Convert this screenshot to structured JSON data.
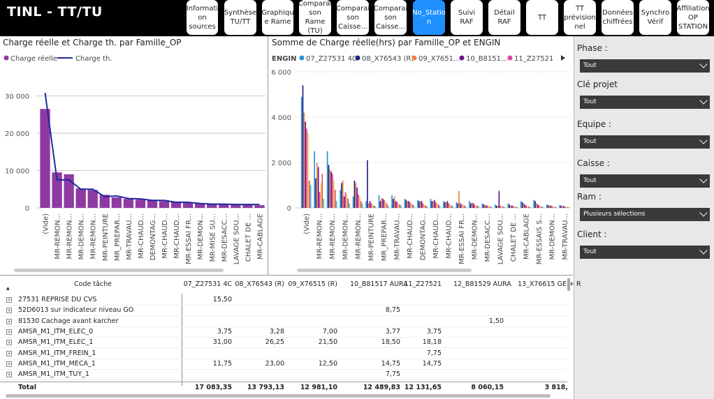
{
  "header": {
    "title": "TINL - TT/TU"
  },
  "nav": [
    {
      "label": "Informati on sources"
    },
    {
      "label": "Synthèse TU/TT"
    },
    {
      "label": "Graphiqu e Rame"
    },
    {
      "label": "Comparai son Rame (TU)"
    },
    {
      "label": "Comparai son Caisse..."
    },
    {
      "label": "Comparai son Caisse..."
    },
    {
      "label": "No_Statio n",
      "active": true
    },
    {
      "label": "Suivi RAF"
    },
    {
      "label": "Détail RAF"
    },
    {
      "label": "TT"
    },
    {
      "label": "TT prévision nel"
    },
    {
      "label": "Données chiffrées"
    },
    {
      "label": "Synchro Vérif"
    },
    {
      "label": "Affiliation OP STATION"
    }
  ],
  "chart_data": [
    {
      "type": "bar",
      "title": "Charge réelle et Charge th. par Famille_OP",
      "legend": [
        "Charge réelle",
        "Charge th."
      ],
      "colors": {
        "bar": "#8e3aa3",
        "line": "#1f2a9e"
      },
      "categories": [
        "(Vide)",
        "MR-REMON...",
        "MR-REMON...",
        "MR-DEMON...",
        "MR-REMON...",
        "MR-PEINTURE",
        "MR_PREPAR...",
        "MR-TRAVAU...",
        "MR-CHAUD...",
        "DEMONTAG...",
        "MR-CHAUD...",
        "MR-CHAUD...",
        "MR-ESSAI FR...",
        "MR-DEMON...",
        "MR-MISE SU...",
        "MR-DESACC...",
        "LAVAGE SOU...",
        "CHALET DE ...",
        "MR-CABLAGE"
      ],
      "series": [
        {
          "name": "Charge réelle",
          "values": [
            26500,
            9500,
            9000,
            5200,
            4800,
            3500,
            2800,
            2400,
            2200,
            2000,
            1800,
            1700,
            1500,
            1300,
            1100,
            1000,
            900,
            800,
            700
          ]
        },
        {
          "name": "Charge th.",
          "values": [
            30800,
            7500,
            7500,
            5000,
            5000,
            3000,
            3200,
            2500,
            2400,
            2000,
            2000,
            1500,
            1500,
            1200,
            1000,
            1000,
            900,
            900,
            900
          ]
        }
      ],
      "yticks": [
        "0",
        "10 000",
        "20 000",
        "30 000"
      ],
      "ylim": [
        0,
        34000
      ]
    },
    {
      "type": "bar",
      "title": "Somme de Charge réelle(hrs) par Famille_OP et ENGIN",
      "legend_title": "ENGIN",
      "legend": [
        {
          "name": "07_Z27531 4C",
          "color": "#2b8fd8"
        },
        {
          "name": "08_X76543 (R)",
          "color": "#1a237e"
        },
        {
          "name": "09_X7651...",
          "color": "#f08040"
        },
        {
          "name": "10_B8151...",
          "color": "#6a0f8e"
        },
        {
          "name": "11_Z27521",
          "color": "#e040a0"
        }
      ],
      "categories": [
        "(Vide)",
        "MR-REMON...",
        "MR-REMON...",
        "MR-DEMON...",
        "MR-REMON...",
        "MR-PEINTURE",
        "MR_PREPAR...",
        "MR-TRAVAU...",
        "MR-CHAUD...",
        "DEMONTAG...",
        "MR-CHAUD...",
        "MR-CHAUD...",
        "MR-ESSAI FR...",
        "MR-DEMON...",
        "MR-DESACC...",
        "LAVAGE SOU...",
        "CHALET DE ...",
        "MR-CABLAGE",
        "MR-ESSAIS S...",
        "MR-DEMON...",
        "MR-TRAVAU..."
      ],
      "series_colors": [
        "#2b8fd8",
        "#1a237e",
        "#f08040",
        "#6a0f8e",
        "#e040a0",
        "#f2c94c",
        "#e05050",
        "#3cb7c4"
      ],
      "groups": [
        [
          4900,
          5400,
          4200,
          3800,
          3500,
          3300,
          1200,
          1000
        ],
        [
          2500,
          1300,
          2000,
          1800,
          700,
          1100,
          1500,
          400
        ],
        [
          2500,
          1900,
          1700,
          1600,
          1500,
          1200,
          800,
          300
        ],
        [
          800,
          1100,
          1200,
          500,
          700,
          600,
          400,
          200
        ],
        [
          500,
          1200,
          1100,
          900,
          600,
          500,
          300,
          200
        ],
        [
          300,
          2100,
          200,
          300,
          200,
          150,
          100,
          80
        ],
        [
          550,
          300,
          450,
          400,
          350,
          300,
          200,
          100
        ],
        [
          550,
          400,
          500,
          300,
          250,
          200,
          150,
          100
        ],
        [
          400,
          350,
          300,
          300,
          250,
          200,
          150,
          100
        ],
        [
          350,
          300,
          300,
          300,
          200,
          150,
          100,
          80
        ],
        [
          400,
          300,
          300,
          350,
          250,
          200,
          150,
          100
        ],
        [
          300,
          250,
          250,
          300,
          200,
          150,
          100,
          80
        ],
        [
          250,
          200,
          750,
          200,
          150,
          150,
          100,
          80
        ],
        [
          300,
          200,
          250,
          200,
          150,
          100,
          100,
          80
        ],
        [
          200,
          150,
          150,
          100,
          100,
          80,
          60,
          50
        ],
        [
          150,
          100,
          80,
          750,
          100,
          80,
          60,
          50
        ],
        [
          200,
          150,
          100,
          100,
          80,
          60,
          50,
          40
        ],
        [
          300,
          250,
          200,
          150,
          100,
          80,
          60,
          40
        ],
        [
          350,
          300,
          200,
          150,
          100,
          80,
          60,
          40
        ],
        [
          150,
          120,
          100,
          100,
          80,
          60,
          50,
          40
        ],
        [
          120,
          100,
          80,
          80,
          60,
          50,
          40,
          30
        ]
      ],
      "yticks": [
        "0",
        "2 000",
        "4 000",
        "6 000"
      ],
      "ylim": [
        0,
        6000
      ]
    }
  ],
  "filters": [
    {
      "label": "Phase :",
      "value": "Tout"
    },
    {
      "label": "Clé projet",
      "value": "Tout"
    },
    {
      "label": "Equipe :",
      "value": "Tout"
    },
    {
      "label": "Caisse :",
      "value": "Tout"
    },
    {
      "label": "Ram :",
      "value": "Plusieurs sélections"
    },
    {
      "label": "Client :",
      "value": "Tout"
    }
  ],
  "table": {
    "headers": [
      "Code tâche",
      "07_Z27531 4C",
      "08_X76543 (R)",
      "09_X76515 (R)",
      "10_B81517 AURA",
      "11_Z27521",
      "12_B81529 AURA",
      "13_X76615 GE + R"
    ],
    "rows": [
      {
        "code": "27531 REPRISE DU CVS",
        "vals": [
          "15,50",
          "",
          "",
          "",
          "",
          "",
          ""
        ]
      },
      {
        "code": "52D6013 sur indicateur niveau GO",
        "vals": [
          "",
          "",
          "",
          "8,75",
          "",
          "",
          ""
        ]
      },
      {
        "code": "81530 Cachage avant karcher",
        "vals": [
          "",
          "",
          "",
          "",
          "",
          "1,50",
          ""
        ]
      },
      {
        "code": "AMSR_M1_ITM_ELEC_0",
        "vals": [
          "3,75",
          "3,28",
          "7,00",
          "3,77",
          "3,75",
          "",
          ""
        ]
      },
      {
        "code": "AMSR_M1_ITM_ELEC_1",
        "vals": [
          "31,00",
          "26,25",
          "21,50",
          "18,50",
          "18,18",
          "",
          ""
        ]
      },
      {
        "code": "AMSR_M1_ITM_FREIN_1",
        "vals": [
          "",
          "",
          "",
          "",
          "7,75",
          "",
          ""
        ]
      },
      {
        "code": "AMSR_M1_ITM_MECA_1",
        "vals": [
          "11,75",
          "23,00",
          "12,50",
          "14,75",
          "14,75",
          "",
          ""
        ]
      },
      {
        "code": "AMSR_M1_ITM_TUY_1",
        "vals": [
          "",
          "",
          "",
          "7,75",
          "",
          "",
          ""
        ]
      }
    ],
    "total": {
      "label": "Total",
      "vals": [
        "17 083,35",
        "13 793,13",
        "12 981,10",
        "12 489,83",
        "12 131,65",
        "8 060,15",
        "3 818,"
      ]
    }
  }
}
